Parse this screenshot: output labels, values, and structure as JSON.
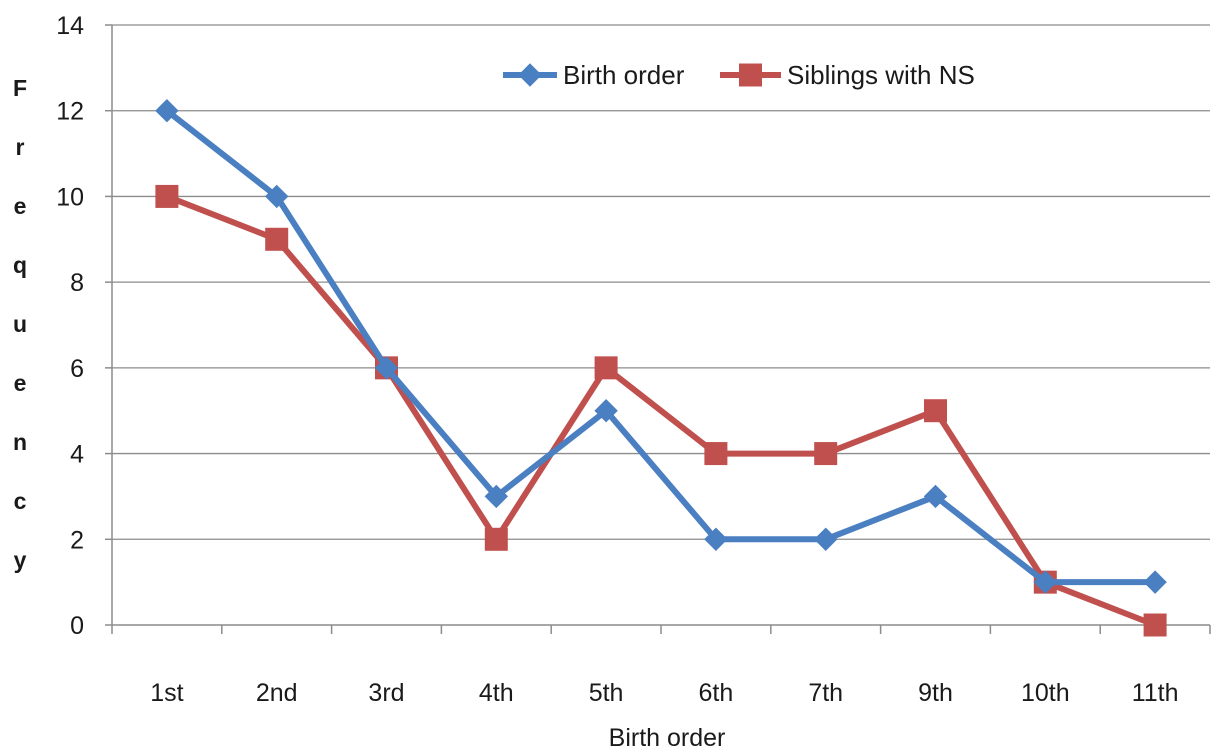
{
  "chart_data": {
    "type": "line",
    "categories": [
      "1st",
      "2nd",
      "3rd",
      "4th",
      "5th",
      "6th",
      "7th",
      "9th",
      "10th",
      "11th"
    ],
    "series": [
      {
        "name": "Birth order",
        "values": [
          12,
          10,
          6,
          3,
          5,
          2,
          2,
          3,
          1,
          1
        ],
        "color": "#4a7fc1",
        "marker": "diamond"
      },
      {
        "name": "Siblings with NS",
        "values": [
          10,
          9,
          6,
          2,
          6,
          4,
          4,
          5,
          1,
          0
        ],
        "color": "#c0504d",
        "marker": "square"
      }
    ],
    "xlabel": "Birth order",
    "ylabel": "Frequency",
    "ylim": [
      0,
      14
    ],
    "yticks": [
      0,
      2,
      4,
      6,
      8,
      10,
      12,
      14
    ],
    "grid": "horizontal",
    "legend": "top"
  }
}
